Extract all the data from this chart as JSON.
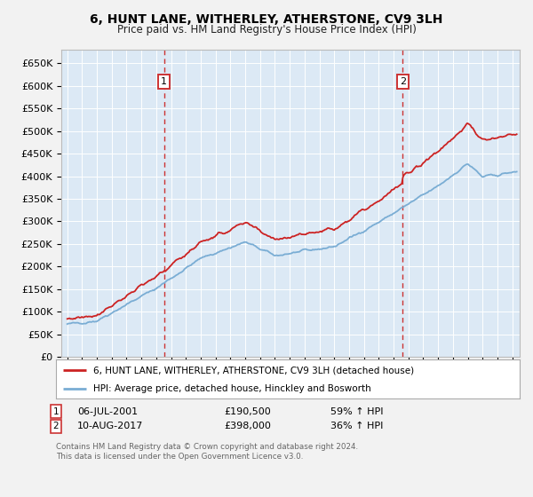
{
  "title": "6, HUNT LANE, WITHERLEY, ATHERSTONE, CV9 3LH",
  "subtitle": "Price paid vs. HM Land Registry's House Price Index (HPI)",
  "legend_line1": "6, HUNT LANE, WITHERLEY, ATHERSTONE, CV9 3LH (detached house)",
  "legend_line2": "HPI: Average price, detached house, Hinckley and Bosworth",
  "sale1_date": "06-JUL-2001",
  "sale1_price": "£190,500",
  "sale1_hpi": "59% ↑ HPI",
  "sale1_year": 2001.52,
  "sale1_value": 190500,
  "sale2_date": "10-AUG-2017",
  "sale2_price": "£398,000",
  "sale2_hpi": "36% ↑ HPI",
  "sale2_year": 2017.61,
  "sale2_value": 398000,
  "footnote1": "Contains HM Land Registry data © Crown copyright and database right 2024.",
  "footnote2": "This data is licensed under the Open Government Licence v3.0.",
  "fig_bg_color": "#f2f2f2",
  "plot_bg_color": "#dce9f5",
  "hpi_line_color": "#7aadd4",
  "price_line_color": "#cc2222",
  "dashed_line_color": "#cc3333",
  "grid_color": "#ffffff",
  "ylim": [
    0,
    680000
  ],
  "yticks": [
    0,
    50000,
    100000,
    150000,
    200000,
    250000,
    300000,
    350000,
    400000,
    450000,
    500000,
    550000,
    600000,
    650000
  ],
  "xlim_start": 1994.6,
  "xlim_end": 2025.5
}
